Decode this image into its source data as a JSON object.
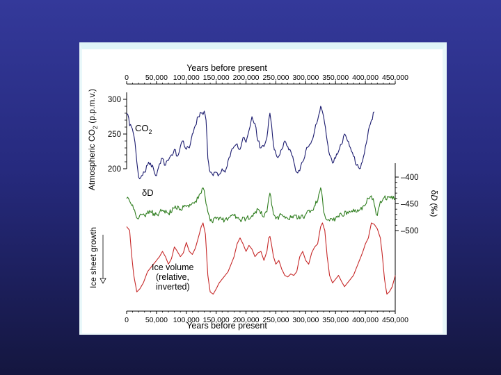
{
  "chart_data": {
    "type": "line",
    "title": "",
    "x_axis": {
      "label": "Years before present",
      "range": [
        0,
        450000
      ],
      "ticks": [
        "0",
        "50,000",
        "100,000",
        "150,000",
        "200,000",
        "250,000",
        "300,000",
        "350,000",
        "400,000",
        "450,000"
      ],
      "tick_values": [
        0,
        50000,
        100000,
        150000,
        200000,
        250000,
        300000,
        350000,
        400000,
        450000
      ]
    },
    "left_axis": {
      "label": "Atmospheric CO2 (p.p.m.v.)",
      "range": [
        180,
        300
      ],
      "ticks": [
        "300",
        "250",
        "200"
      ],
      "tick_values": [
        300,
        250,
        200
      ]
    },
    "right_axis": {
      "label": "δD (‰)",
      "range": [
        -400,
        -500
      ],
      "ticks": [
        "–400",
        "–450",
        "–500"
      ],
      "tick_values": [
        -400,
        -450,
        -500
      ]
    },
    "ice_axis_label": "Ice sheet growth",
    "series": [
      {
        "name": "CO2",
        "label": "CO2",
        "color": "#1a1a6e",
        "units": "ppmv",
        "x": [
          0,
          2000,
          5000,
          8000,
          11000,
          14000,
          17000,
          20000,
          25000,
          30000,
          35000,
          40000,
          45000,
          50000,
          55000,
          60000,
          65000,
          70000,
          75000,
          80000,
          85000,
          90000,
          95000,
          100000,
          105000,
          110000,
          115000,
          120000,
          125000,
          128000,
          130000,
          133000,
          136000,
          140000,
          145000,
          150000,
          155000,
          160000,
          165000,
          170000,
          175000,
          180000,
          185000,
          190000,
          195000,
          200000,
          205000,
          210000,
          215000,
          220000,
          225000,
          230000,
          235000,
          238000,
          240000,
          243000,
          246000,
          250000,
          255000,
          260000,
          265000,
          270000,
          275000,
          280000,
          285000,
          290000,
          295000,
          300000,
          305000,
          310000,
          315000,
          320000,
          322000,
          325000,
          328000,
          330000,
          333000,
          336000,
          340000,
          345000,
          350000,
          355000,
          360000,
          365000,
          370000,
          375000,
          380000,
          385000,
          390000,
          395000,
          400000,
          405000,
          410000,
          415000
        ],
        "values": [
          280,
          278,
          262,
          260,
          252,
          238,
          210,
          188,
          190,
          195,
          205,
          208,
          200,
          190,
          207,
          215,
          205,
          212,
          220,
          228,
          218,
          232,
          240,
          228,
          230,
          250,
          262,
          275,
          280,
          278,
          283,
          270,
          215,
          195,
          190,
          195,
          192,
          200,
          195,
          212,
          225,
          232,
          236,
          228,
          245,
          238,
          255,
          275,
          265,
          240,
          230,
          232,
          245,
          270,
          280,
          262,
          235,
          222,
          218,
          228,
          240,
          232,
          225,
          210,
          195,
          197,
          210,
          225,
          232,
          240,
          255,
          270,
          278,
          290,
          282,
          275,
          260,
          240,
          220,
          208,
          215,
          225,
          235,
          250,
          240,
          230,
          218,
          205,
          200,
          210,
          232,
          255,
          270,
          282
        ]
      },
      {
        "name": "δD",
        "label": "δD",
        "color": "#2e7d1e",
        "units": "permil",
        "x": [
          0,
          5000,
          10000,
          15000,
          20000,
          25000,
          30000,
          40000,
          50000,
          60000,
          70000,
          80000,
          90000,
          100000,
          110000,
          115000,
          120000,
          125000,
          128000,
          130000,
          133000,
          136000,
          140000,
          150000,
          160000,
          170000,
          180000,
          190000,
          200000,
          210000,
          220000,
          230000,
          235000,
          238000,
          240000,
          243000,
          246000,
          250000,
          260000,
          270000,
          280000,
          290000,
          300000,
          310000,
          320000,
          322000,
          325000,
          328000,
          330000,
          335000,
          340000,
          350000,
          360000,
          370000,
          380000,
          390000,
          400000,
          405000,
          410000,
          413000,
          415000,
          418000,
          420000,
          425000,
          430000,
          440000,
          450000
        ],
        "values": [
          -440,
          -445,
          -452,
          -470,
          -478,
          -470,
          -472,
          -465,
          -470,
          -462,
          -468,
          -458,
          -460,
          -455,
          -448,
          -445,
          -440,
          -430,
          -420,
          -425,
          -450,
          -465,
          -482,
          -478,
          -480,
          -478,
          -472,
          -480,
          -478,
          -472,
          -460,
          -475,
          -465,
          -440,
          -430,
          -452,
          -470,
          -478,
          -470,
          -478,
          -472,
          -478,
          -470,
          -462,
          -445,
          -432,
          -420,
          -440,
          -465,
          -480,
          -482,
          -478,
          -470,
          -465,
          -460,
          -462,
          -452,
          -440,
          -435,
          -440,
          -452,
          -470,
          -472,
          -445,
          -440,
          -438,
          -440
        ]
      },
      {
        "name": "Ice volume",
        "label": "Ice volume (relative, inverted)",
        "color": "#c62828",
        "units": "relative (inverted, higher = less ice)",
        "x": [
          0,
          5000,
          8000,
          12000,
          17000,
          22000,
          28000,
          35000,
          45000,
          55000,
          60000,
          65000,
          70000,
          75000,
          80000,
          85000,
          90000,
          95000,
          100000,
          105000,
          110000,
          115000,
          120000,
          125000,
          128000,
          132000,
          136000,
          140000,
          145000,
          150000,
          155000,
          160000,
          170000,
          180000,
          185000,
          190000,
          195000,
          200000,
          205000,
          210000,
          215000,
          220000,
          225000,
          230000,
          235000,
          238000,
          240000,
          243000,
          246000,
          250000,
          255000,
          260000,
          265000,
          270000,
          275000,
          280000,
          285000,
          290000,
          295000,
          300000,
          305000,
          310000,
          315000,
          320000,
          325000,
          328000,
          332000,
          336000,
          340000,
          345000,
          350000,
          355000,
          360000,
          365000,
          370000,
          375000,
          380000,
          385000,
          390000,
          395000,
          400000,
          405000,
          410000,
          415000,
          420000,
          425000,
          428000,
          432000,
          436000,
          440000,
          445000,
          450000
        ],
        "values": [
          0.95,
          0.9,
          0.6,
          0.3,
          0.08,
          0.12,
          0.2,
          0.35,
          0.45,
          0.55,
          0.62,
          0.55,
          0.45,
          0.52,
          0.68,
          0.62,
          0.55,
          0.6,
          0.74,
          0.62,
          0.58,
          0.66,
          0.8,
          0.95,
          1.0,
          0.85,
          0.3,
          0.08,
          0.05,
          0.12,
          0.2,
          0.25,
          0.35,
          0.55,
          0.72,
          0.8,
          0.72,
          0.62,
          0.7,
          0.65,
          0.55,
          0.6,
          0.62,
          0.5,
          0.62,
          0.8,
          0.82,
          0.7,
          0.55,
          0.45,
          0.5,
          0.38,
          0.3,
          0.28,
          0.32,
          0.3,
          0.35,
          0.55,
          0.62,
          0.5,
          0.45,
          0.6,
          0.68,
          0.72,
          0.95,
          1.0,
          0.9,
          0.55,
          0.3,
          0.2,
          0.25,
          0.3,
          0.22,
          0.15,
          0.2,
          0.25,
          0.3,
          0.4,
          0.5,
          0.6,
          0.72,
          0.8,
          1.0,
          0.98,
          0.92,
          0.8,
          0.6,
          0.25,
          0.05,
          0.08,
          0.15,
          0.3
        ]
      }
    ],
    "annotations": {
      "co2_label": "CO",
      "co2_subscript": "2",
      "dd_label": "δD",
      "ice_label_line1": "Ice volume",
      "ice_label_line2": "(relative,",
      "ice_label_line3": "inverted)"
    },
    "left_label_parts": {
      "prefix": "Atmospheric CO",
      "subscript": "2",
      "suffix": " (p.p.m.v.)"
    },
    "right_label_parts": {
      "delta": "δ",
      "D": "D",
      "suffix": " (‰)"
    }
  }
}
